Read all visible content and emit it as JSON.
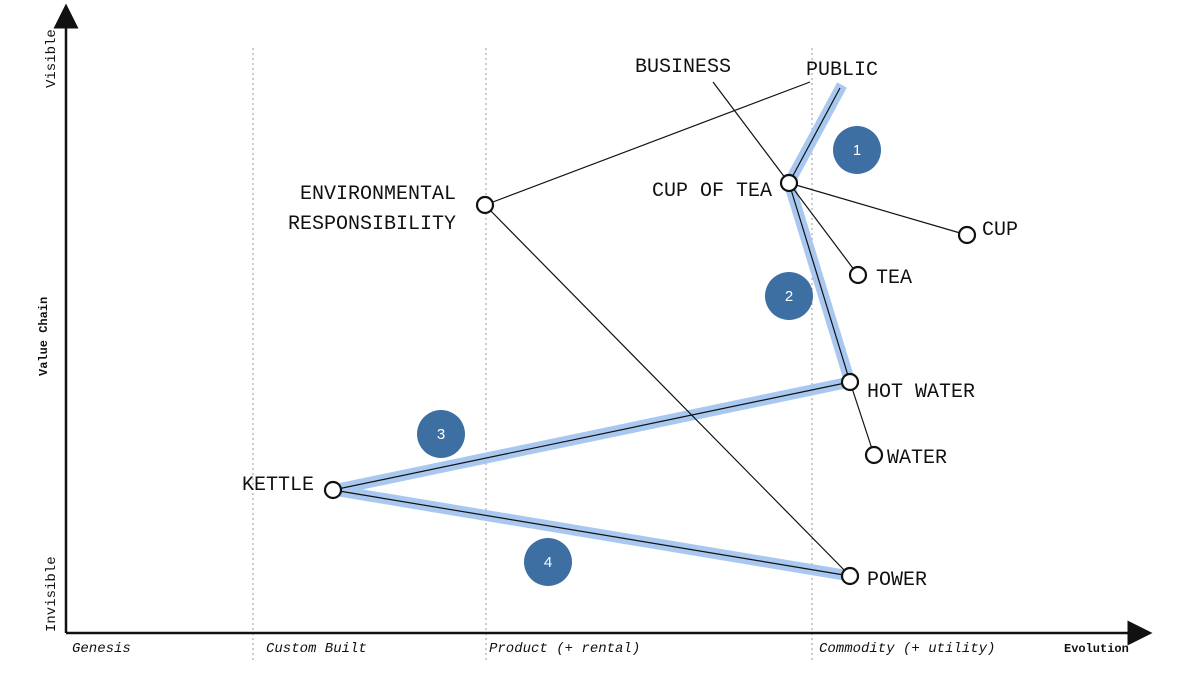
{
  "axes": {
    "y_top": "Visible",
    "y_bottom": "Invisible",
    "y_title": "Value Chain",
    "x_title": "Evolution"
  },
  "stages": [
    "Genesis",
    "Custom Built",
    "Product (+ rental)",
    "Commodity (+ utility)"
  ],
  "users": {
    "business": "BUSINESS",
    "public": "PUBLIC"
  },
  "nodes": {
    "cup_of_tea": "CUP OF TEA",
    "cup": "CUP",
    "tea": "TEA",
    "hot_water": "HOT WATER",
    "water": "WATER",
    "kettle": "KETTLE",
    "power": "POWER",
    "env_line1": "ENVIRONMENTAL",
    "env_line2": "RESPONSIBILITY"
  },
  "steps": [
    "1",
    "2",
    "3",
    "4"
  ],
  "colors": {
    "path_highlight": "#a9c8f0",
    "badge": "#3d6fa3",
    "line": "#111111",
    "divider": "#999999"
  }
}
